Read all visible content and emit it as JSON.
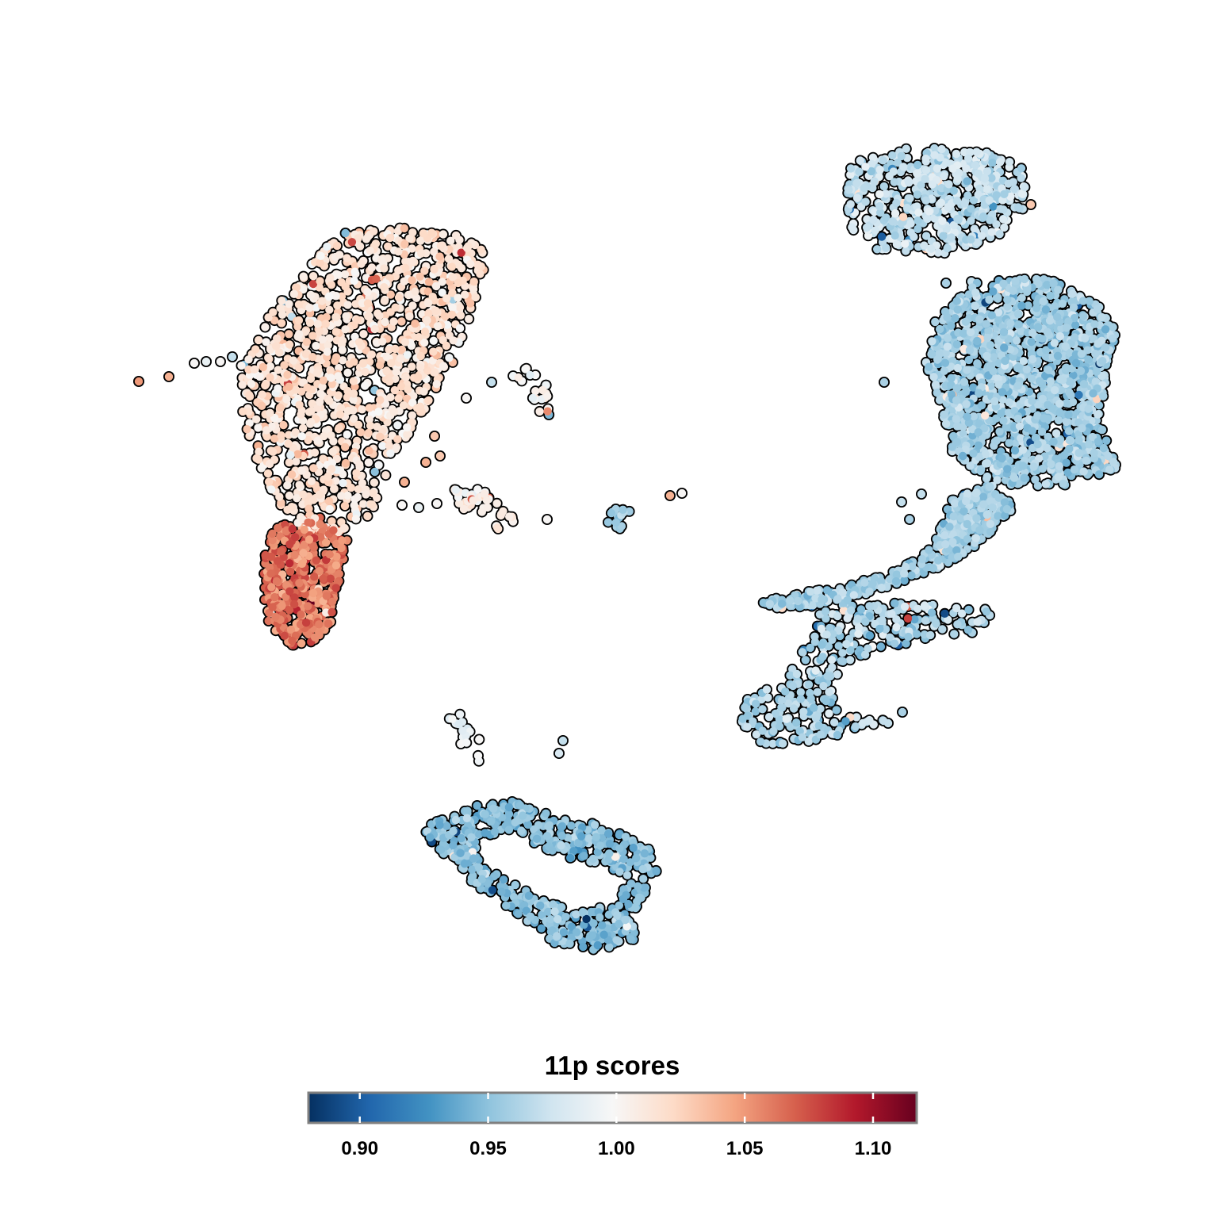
{
  "chart_data": {
    "type": "scatter",
    "title": "",
    "xlabel": "",
    "ylabel": "",
    "grid": false,
    "axes_visible": false,
    "legend": {
      "title": "11p scores",
      "placement": "bottom",
      "type": "colorbar",
      "range": [
        0.88,
        1.117
      ],
      "ticks": [
        0.9,
        0.95,
        1.0,
        1.05,
        1.1
      ],
      "tick_labels": [
        "0.90",
        "0.95",
        "1.00",
        "1.05",
        "1.10"
      ],
      "colormap": [
        "#053061",
        "#2166ac",
        "#4393c3",
        "#92c5de",
        "#d1e5f0",
        "#f7f7f7",
        "#fddbc7",
        "#f4a582",
        "#d6604d",
        "#b2182b",
        "#67001f"
      ]
    },
    "point_outline_color": "#000000",
    "clusters": [
      {
        "x_range": [
          0.14,
          0.4
        ],
        "y_range": [
          0.49,
          0.82
        ],
        "score_range": [
          0.99,
          1.04
        ],
        "mean_score": 1.02
      },
      {
        "x_range": [
          0.21,
          0.29
        ],
        "y_range": [
          0.19,
          0.37
        ],
        "score_range": [
          1.04,
          1.1
        ],
        "mean_score": 1.06
      },
      {
        "x_range": [
          0.69,
          0.85
        ],
        "y_range": [
          0.79,
          0.91
        ],
        "score_range": [
          0.94,
          0.99
        ],
        "mean_score": 0.97
      },
      {
        "x_range": [
          0.72,
          0.92
        ],
        "y_range": [
          0.45,
          0.78
        ],
        "score_range": [
          0.93,
          0.98
        ],
        "mean_score": 0.96
      },
      {
        "x_range": [
          0.6,
          0.84
        ],
        "y_range": [
          0.29,
          0.47
        ],
        "score_range": [
          0.93,
          0.98
        ],
        "mean_score": 0.96
      },
      {
        "x_range": [
          0.34,
          0.54
        ],
        "y_range": [
          0.02,
          0.18
        ],
        "score_range": [
          0.92,
          0.97
        ],
        "mean_score": 0.95
      },
      {
        "x_range": [
          0.36,
          0.43
        ],
        "y_range": [
          0.45,
          0.52
        ],
        "score_range": [
          0.98,
          1.03
        ],
        "mean_score": 1.0
      },
      {
        "x_range": [
          0.4,
          0.45
        ],
        "y_range": [
          0.57,
          0.63
        ],
        "score_range": [
          0.98,
          1.02
        ],
        "mean_score": 1.0
      },
      {
        "x_range": [
          0.36,
          0.4
        ],
        "y_range": [
          0.23,
          0.28
        ],
        "score_range": [
          0.98,
          1.0
        ],
        "mean_score": 0.99
      },
      {
        "x_range": [
          0.49,
          0.52
        ],
        "y_range": [
          0.46,
          0.49
        ],
        "score_range": [
          0.94,
          0.98
        ],
        "mean_score": 0.96
      }
    ]
  }
}
